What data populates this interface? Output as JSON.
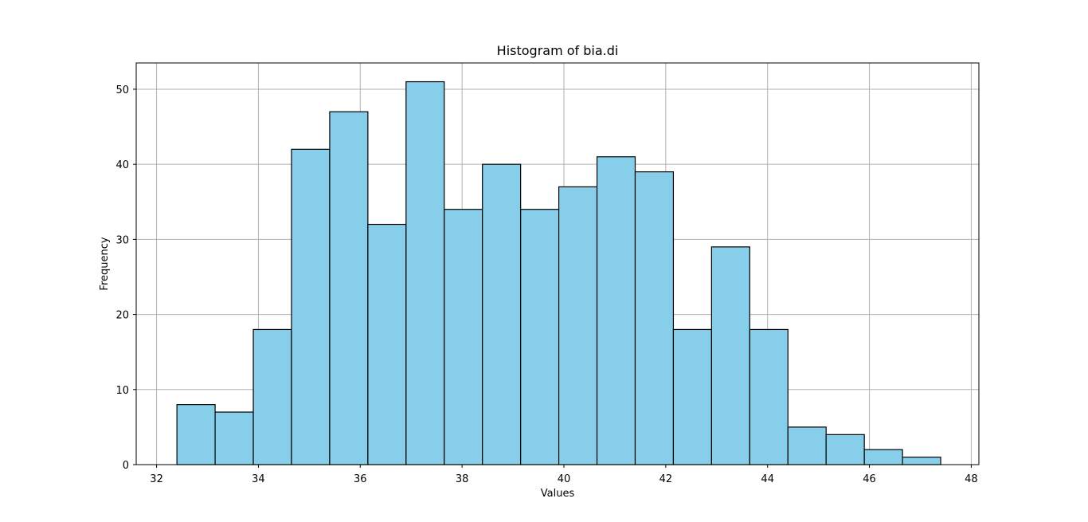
{
  "chart_data": {
    "type": "histogram",
    "title": "Histogram of bia.di",
    "xlabel": "Values",
    "ylabel": "Frequency",
    "xlim": [
      31.6,
      48.15
    ],
    "ylim": [
      0,
      53.5
    ],
    "xticks": [
      32,
      34,
      36,
      38,
      40,
      42,
      44,
      46,
      48
    ],
    "yticks": [
      0,
      10,
      20,
      30,
      40,
      50
    ],
    "grid": true,
    "bar_color": "#87CEEB",
    "edge_color": "#000000",
    "bin_edges": [
      32.4,
      33.15,
      33.9,
      34.65,
      35.4,
      36.15,
      36.9,
      37.65,
      38.4,
      39.15,
      39.9,
      40.65,
      41.4,
      42.15,
      42.9,
      43.65,
      44.4,
      45.15,
      45.9,
      46.65,
      47.4
    ],
    "counts": [
      8,
      7,
      18,
      42,
      47,
      32,
      51,
      34,
      40,
      34,
      37,
      41,
      39,
      18,
      29,
      18,
      5,
      4,
      2,
      1
    ]
  }
}
